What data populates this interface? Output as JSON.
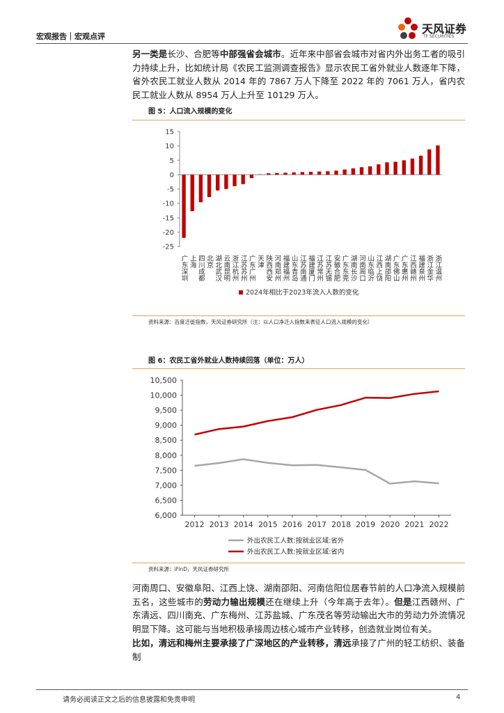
{
  "header": {
    "section": "宏观报告｜宏观点评",
    "brand": "天风证券",
    "brand_en": "TF SECURITIES"
  },
  "paragraphs": [
    [
      {
        "text": "另一类是",
        "bold": true
      },
      {
        "text": "长沙、合肥等",
        "bold": false
      },
      {
        "text": "中部强省会城市",
        "bold": true
      },
      {
        "text": "。近年来中部省会城市对省内外出务工者的吸引力持续上升，比如统计局《农民工监测调查报告》显示农民工省外就业人数逐年下降，省外农民工就业人数从 2014 年的 7867 万人下降至 2022 年的 7061 万人，省内农民工就业人数从 8954 万人上升至 10129 万人。",
        "bold": false
      }
    ],
    [
      {
        "text": "河南周口、安徽阜阳、江西上饶、湖南邵阳、河南信阳位居春节前的人口净流入规模前五名，这些城市的",
        "bold": false
      },
      {
        "text": "劳动力输出规模",
        "bold": true
      },
      {
        "text": "还在继续上升（今年高于去年）。",
        "bold": false
      },
      {
        "text": "但是",
        "bold": true
      },
      {
        "text": "江西赣州、广东清远、四川南充、广东梅州、江苏盐城、广东茂名等劳动输出大市的劳动力外流情况明显下降。这可能与当地积极承接周边核心城市产业转移，创造就业岗位有关。",
        "bold": false
      }
    ],
    [
      {
        "text": "比如，清远和梅州主要承接了广深地区的产业转移，清远",
        "bold": true
      },
      {
        "text": "承接了广州的轻工纺织、装备制",
        "bold": false
      }
    ]
  ],
  "chart_data": [
    {
      "type": "bar",
      "title": "图 5：人口流入规模的变化",
      "categories": [
        "广东深圳",
        "上海",
        "四川成都",
        "北京",
        "湖北武汉",
        "云南昆明",
        "浙江杭州",
        "江苏苏州",
        "广东广州",
        "天津",
        "陕西西安",
        "河南郑州",
        "福建福州",
        "山东青岛",
        "江苏南通",
        "福建厦门",
        "江苏常州",
        "江苏无锡",
        "安徽合肥",
        "广东东莞",
        "湖南长沙",
        "河南周口",
        "山东临沂",
        "江西上饶",
        "湖南邵阳",
        "广东佛山",
        "广东惠州",
        "江西赣州",
        "福建泉州",
        "浙江金华",
        "浙江温州"
      ],
      "series": [
        {
          "name": "2024年相比于2023年流入人数的变化",
          "color": "#c00000",
          "values": [
            -22,
            -12.7,
            -9.6,
            -7.8,
            -5.5,
            -5,
            -4,
            -3.3,
            -1.2,
            0.1,
            0.5,
            0.6,
            0.7,
            0.8,
            0.9,
            1,
            1.1,
            1.2,
            1.4,
            1.8,
            2.2,
            2.6,
            2.9,
            3.6,
            4.3,
            4.5,
            5,
            5.6,
            6.6,
            8.8,
            10.2
          ]
        }
      ],
      "ylim": [
        -25,
        15
      ],
      "yticks": [
        15,
        10,
        5,
        0,
        -5,
        -10,
        -15,
        -20,
        -25
      ],
      "source": "资料来源：百度迁徙指数，天风证券研究所（注：以人口净迁入指数来表征人口流入规模的变化）"
    },
    {
      "type": "line",
      "title": "图 6：农民工省外就业人数持续回落（单位：万人）",
      "x": [
        2012,
        2013,
        2014,
        2015,
        2016,
        2017,
        2018,
        2019,
        2020,
        2021,
        2022
      ],
      "series": [
        {
          "name": "外出农民工人数:按就业区域:省外",
          "color": "#a6a6a6",
          "values": [
            7647,
            7739,
            7867,
            7745,
            7666,
            7675,
            7594,
            7508,
            7052,
            7130,
            7061
          ]
        },
        {
          "name": "外出农民工人数:按就业区域:省内",
          "color": "#c00000",
          "values": [
            8689,
            8871,
            8954,
            9139,
            9268,
            9510,
            9672,
            9917,
            9907,
            10042,
            10129
          ]
        }
      ],
      "xlim": [
        2011.5,
        2022.5
      ],
      "xticks": [
        2012,
        2013,
        2014,
        2015,
        2016,
        2017,
        2018,
        2019,
        2020,
        2021,
        2022
      ],
      "ylim": [
        6000,
        10500
      ],
      "yticks": [
        {
          "value": 10500,
          "label": "10,500"
        },
        {
          "value": 10000,
          "label": "10,000"
        },
        {
          "value": 9500,
          "label": "9,500"
        },
        {
          "value": 9000,
          "label": "9,000"
        },
        {
          "value": 8500,
          "label": "8,500"
        },
        {
          "value": 8000,
          "label": "8,000"
        },
        {
          "value": 7500,
          "label": "7,500"
        },
        {
          "value": 7000,
          "label": "7,000"
        },
        {
          "value": 6500,
          "label": "6,500"
        },
        {
          "value": 6000,
          "label": "6,000"
        }
      ],
      "source": "资料来源：iFinD，天风证券研究所"
    }
  ],
  "footer": {
    "disclaimer": "请务必阅读正文之后的信息披露和免责申明",
    "page": "4"
  }
}
